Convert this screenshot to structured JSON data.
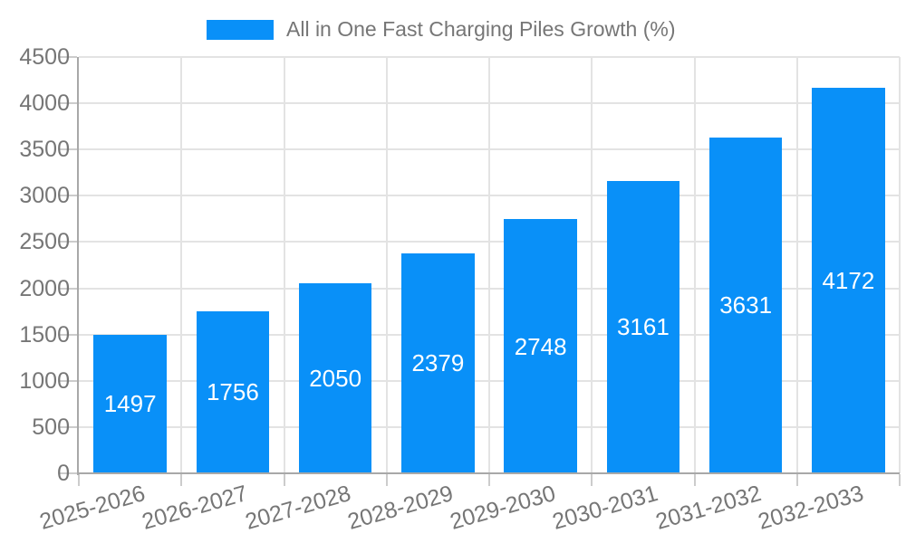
{
  "chart_data": {
    "type": "bar",
    "title": "",
    "legend": {
      "label": "All in One Fast Charging Piles Growth (%)",
      "position": "top-center"
    },
    "categories": [
      "2025-2026",
      "2026-2027",
      "2027-2028",
      "2028-2029",
      "2029-2030",
      "2030-2031",
      "2031-2032",
      "2032-2033"
    ],
    "values": [
      1497,
      1756,
      2050,
      2379,
      2748,
      3161,
      3631,
      4172
    ],
    "xlabel": "",
    "ylabel": "",
    "ylim": [
      0,
      4500
    ],
    "yticks": [
      0,
      500,
      1000,
      1500,
      2000,
      2500,
      3000,
      3500,
      4000,
      4500
    ],
    "grid": true,
    "x_label_rotation_deg": -16,
    "colors": {
      "bar": "#0990f8",
      "value_label": "#ffffff",
      "tick_text": "#767676",
      "legend_text": "#767676",
      "gridline": "#e3e3e3",
      "axis_line": "#a8a8a8",
      "tick_mark": "#cccccc",
      "background": "#ffffff"
    }
  }
}
